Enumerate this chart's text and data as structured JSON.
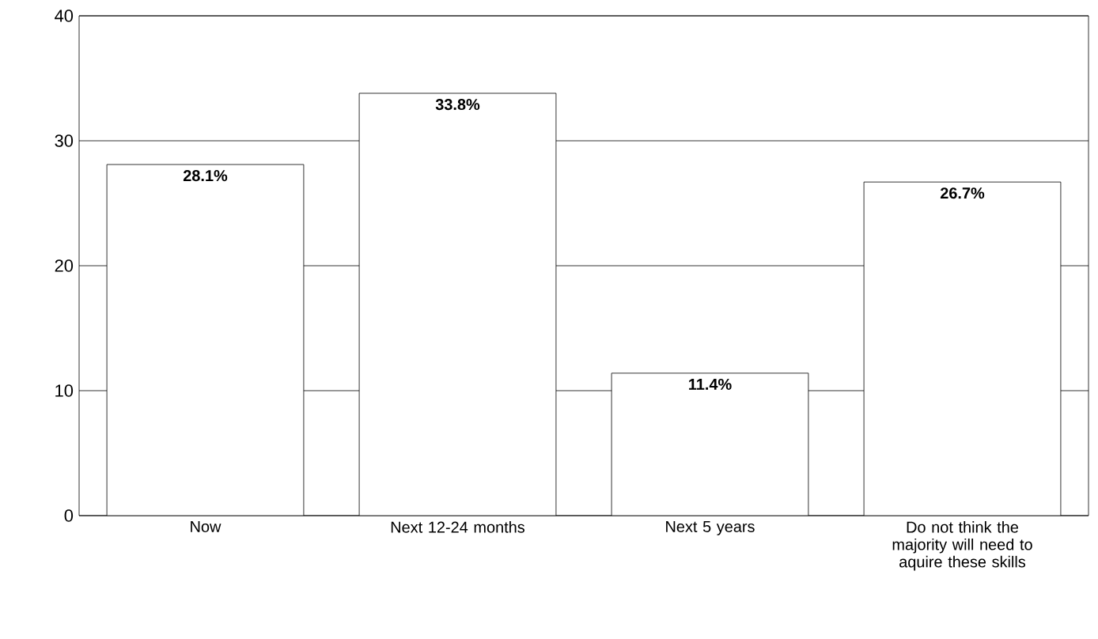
{
  "chart_data": {
    "type": "bar",
    "categories": [
      "Now",
      "Next 12-24 months",
      "Next 5 years",
      "Do not think the majority will need to aquire these skills"
    ],
    "values": [
      28.1,
      33.8,
      11.4,
      26.7
    ],
    "value_labels": [
      "28.1%",
      "33.8%",
      "11.4%",
      "26.7%"
    ],
    "color": "#ffffff",
    "ylim": [
      0,
      40
    ],
    "yticks": [
      0,
      10,
      20,
      30,
      40
    ],
    "grid": "y"
  }
}
